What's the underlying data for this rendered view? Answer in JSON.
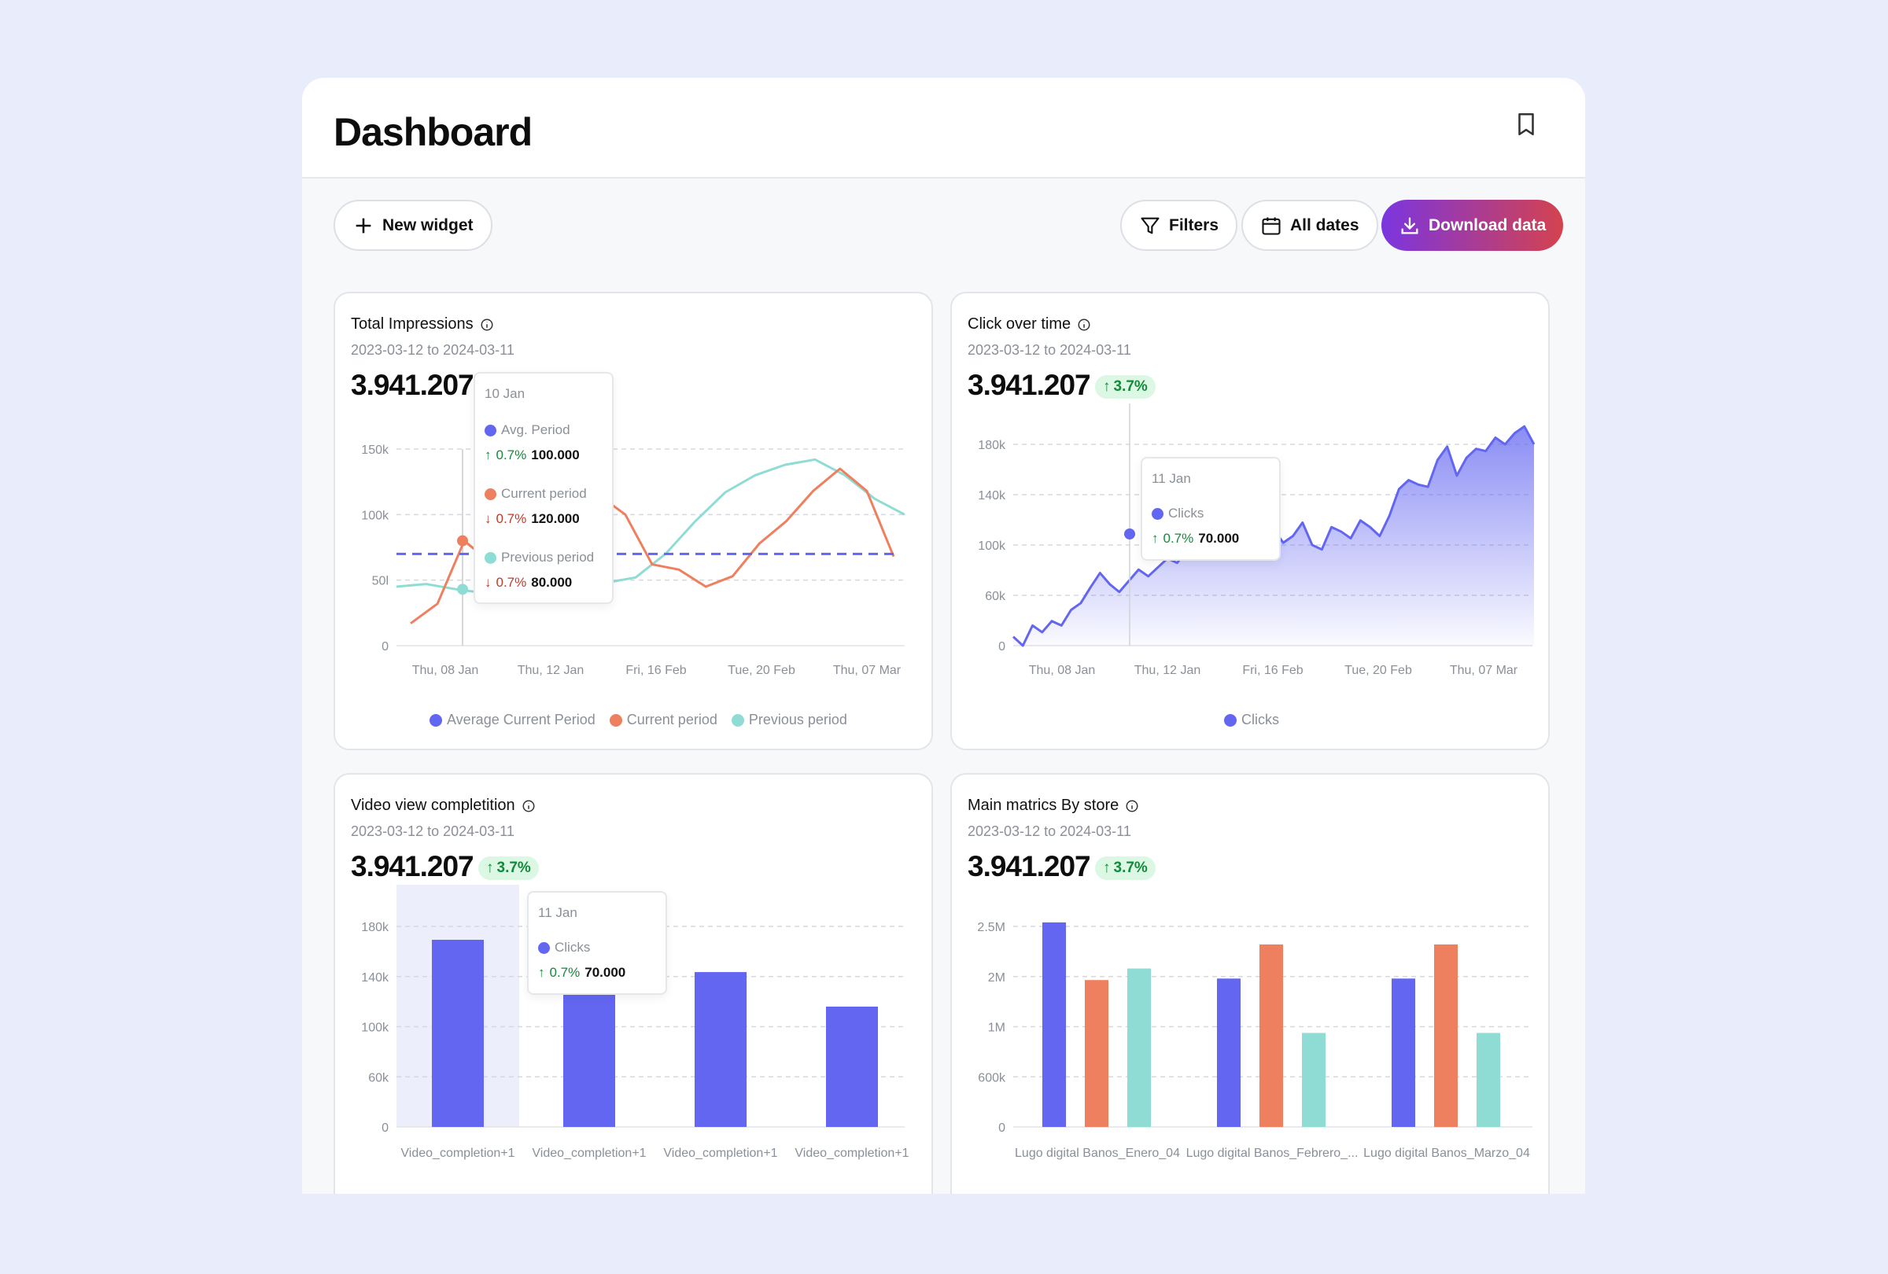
{
  "header": {
    "title": "Dashboard"
  },
  "toolbar": {
    "new_widget": "New widget",
    "filters": "Filters",
    "all_dates": "All dates",
    "download": "Download data"
  },
  "colors": {
    "blue": "#6366f1",
    "orange": "#ee7f5f",
    "teal": "#8fdcd4",
    "green": "#138a3a",
    "red": "#c0392b"
  },
  "widgets": {
    "impressions": {
      "title": "Total Impressions",
      "range": "2023-03-12 to 2024-03-11",
      "value": "3.941.207",
      "tooltip": {
        "date": "10 Jan",
        "rows": [
          {
            "label": "Avg. Period",
            "pct": "0.7%",
            "value": "100.000",
            "dir": "up"
          },
          {
            "label": "Current period",
            "pct": "0.7%",
            "value": "120.000",
            "dir": "down"
          },
          {
            "label": "Previous period",
            "pct": "0.7%",
            "value": "80.000",
            "dir": "down"
          }
        ]
      },
      "legend": [
        "Average Current Period",
        "Current period",
        "Previous period"
      ]
    },
    "clicks": {
      "title": "Click over time",
      "range": "2023-03-12 to 2024-03-11",
      "value": "3.941.207",
      "badge": "3.7%",
      "tooltip": {
        "date": "11 Jan",
        "label": "Clicks",
        "pct": "0.7%",
        "value": "70.000"
      },
      "legend": [
        "Clicks"
      ]
    },
    "video": {
      "title": "Video view completition",
      "range": "2023-03-12 to 2024-03-11",
      "value": "3.941.207",
      "badge": "3.7%",
      "tooltip": {
        "date": "11 Jan",
        "label": "Clicks",
        "pct": "0.7%",
        "value": "70.000"
      }
    },
    "stores": {
      "title": "Main matrics By store",
      "range": "2023-03-12 to 2024-03-11",
      "value": "3.941.207",
      "badge": "3.7%"
    }
  },
  "chart_data": [
    {
      "type": "line",
      "x_ticks": [
        "Thu, 08 Jan",
        "Thu, 12 Jan",
        "Fri, 16 Feb",
        "Tue, 20 Feb",
        "Thu, 07 Mar"
      ],
      "y_ticks": [
        "150k",
        "100k",
        "50l",
        "0"
      ],
      "ylim": [
        0,
        150000
      ],
      "average_level": 70000,
      "series": [
        {
          "name": "Current period",
          "values": [
            17000,
            32000,
            80000,
            63000,
            52000,
            75000,
            100000,
            115000,
            100000,
            62000,
            58000,
            45000,
            53000,
            78000,
            95000,
            118000,
            135000,
            118000,
            68000
          ]
        },
        {
          "name": "Previous period",
          "values": [
            45000,
            47000,
            43000,
            40000,
            38000,
            34000,
            33000,
            48000,
            52000,
            70000,
            95000,
            117000,
            130000,
            138000,
            142000,
            130000,
            112000,
            100000
          ]
        }
      ],
      "grid": true,
      "legend_position": "bottom"
    },
    {
      "type": "area",
      "x_ticks": [
        "Thu, 08 Jan",
        "Thu, 12 Jan",
        "Fri, 16 Feb",
        "Tue, 20 Feb",
        "Thu, 07 Mar"
      ],
      "y_ticks": [
        "180k",
        "140k",
        "100k",
        "60k",
        "0"
      ],
      "ylim": [
        0,
        180000
      ],
      "series": [
        {
          "name": "Clicks",
          "values": [
            8000,
            0,
            18000,
            12000,
            22000,
            18000,
            32000,
            38000,
            52000,
            65000,
            55000,
            48000,
            58000,
            68000,
            62000,
            70000,
            78000,
            74000,
            86000,
            90000,
            80000,
            96000,
            92000,
            88000,
            100000,
            84000,
            96000,
            104000,
            92000,
            98000,
            110000,
            90000,
            86000,
            106000,
            102000,
            96000,
            112000,
            106000,
            98000,
            116000,
            140000,
            148000,
            144000,
            142000,
            166000,
            178000,
            152000,
            168000,
            176000,
            174000,
            186000,
            180000,
            190000,
            196000,
            180000
          ]
        }
      ],
      "grid": true,
      "legend_position": "bottom"
    },
    {
      "type": "bar",
      "categories": [
        "Video_completion+1",
        "Video_completion+1",
        "Video_completion+1",
        "Video_completion+1"
      ],
      "y_ticks": [
        "180k",
        "140k",
        "100k",
        "60k",
        "0"
      ],
      "ylim": [
        0,
        180000
      ],
      "values": [
        168000,
        125000,
        139000,
        108000
      ],
      "grid": true
    },
    {
      "type": "bar",
      "categories": [
        "Lugo digital Banos_Enero_04",
        "Lugo digital Banos_Febrero_...",
        "Lugo digital Banos_Marzo_04"
      ],
      "y_ticks": [
        "2.5M",
        "2M",
        "1M",
        "600k",
        "0"
      ],
      "y_tick_values": [
        2500000,
        2000000,
        1000000,
        600000,
        0
      ],
      "series": [
        {
          "color": "#6366f1",
          "values": [
            2540000,
            1960000,
            1960000
          ]
        },
        {
          "color": "#ee7f5f",
          "values": [
            1930000,
            2320000,
            2320000
          ]
        },
        {
          "color": "#8fdcd4",
          "values": [
            2080000,
            950000,
            950000
          ]
        }
      ],
      "grid": true
    }
  ]
}
